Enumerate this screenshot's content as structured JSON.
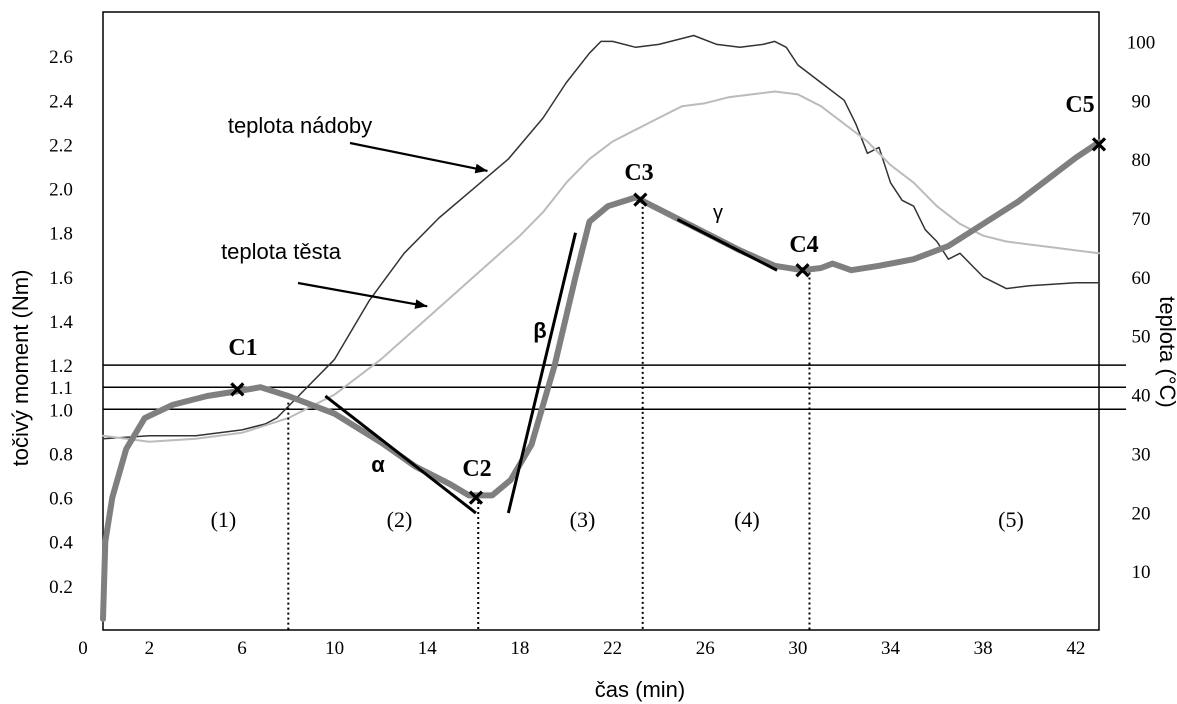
{
  "chart_data": {
    "type": "line",
    "xlabel": "čas (min)",
    "ylabel_left": "točivý moment (Nm)",
    "ylabel_right": "teplota (°C)",
    "xlim": [
      0,
      43
    ],
    "ylim_left": [
      0,
      2.8
    ],
    "ylim_right": [
      0,
      105
    ],
    "x_ticks": [
      "0",
      "2",
      "6",
      "10",
      "14",
      "18",
      "22",
      "26",
      "30",
      "34",
      "38",
      "42"
    ],
    "y_left_ticks": [
      "0.2",
      "0.4",
      "0.6",
      "0.8",
      "1.0",
      "1.1",
      "1.2",
      "1.4",
      "1.6",
      "1.8",
      "2.0",
      "2.2",
      "2.4",
      "2.6"
    ],
    "y_right_ticks": [
      "10",
      "20",
      "30",
      "40",
      "50",
      "60",
      "70",
      "80",
      "90",
      "100"
    ],
    "reference_lines_left": [
      1.0,
      1.1,
      1.2
    ],
    "series": [
      {
        "name": "teplota nádoby",
        "axis": "right",
        "color": "#333333",
        "points": [
          [
            0,
            32.5
          ],
          [
            2,
            33
          ],
          [
            4,
            33
          ],
          [
            6,
            34
          ],
          [
            7,
            35
          ],
          [
            7.5,
            36
          ],
          [
            8.5,
            40
          ],
          [
            10,
            46
          ],
          [
            11.5,
            56
          ],
          [
            13,
            64
          ],
          [
            14.5,
            70
          ],
          [
            16,
            75
          ],
          [
            17.5,
            80
          ],
          [
            19,
            87
          ],
          [
            20,
            93
          ],
          [
            21,
            98
          ],
          [
            21.5,
            100
          ],
          [
            22,
            100
          ],
          [
            23,
            99
          ],
          [
            24,
            99.5
          ],
          [
            25.5,
            101
          ],
          [
            26.5,
            99.5
          ],
          [
            27.5,
            99
          ],
          [
            28.5,
            99.5
          ],
          [
            29,
            100
          ],
          [
            29.5,
            99
          ],
          [
            30,
            96
          ],
          [
            31,
            93
          ],
          [
            32,
            90
          ],
          [
            32.5,
            86
          ],
          [
            33,
            81
          ],
          [
            33.5,
            82
          ],
          [
            34,
            76
          ],
          [
            34.5,
            73
          ],
          [
            35,
            72
          ],
          [
            35.5,
            68
          ],
          [
            36,
            66
          ],
          [
            36.5,
            63
          ],
          [
            37,
            64
          ],
          [
            37.5,
            62
          ],
          [
            38,
            60
          ],
          [
            39,
            58
          ],
          [
            40,
            58.5
          ],
          [
            42,
            59
          ],
          [
            43,
            59
          ]
        ]
      },
      {
        "name": "teplota těsta",
        "axis": "right",
        "color": "#bbbbbb",
        "points": [
          [
            0,
            33
          ],
          [
            2,
            32
          ],
          [
            4,
            32.5
          ],
          [
            6,
            33.5
          ],
          [
            8,
            36
          ],
          [
            10,
            40
          ],
          [
            12,
            46
          ],
          [
            14,
            53
          ],
          [
            16,
            60
          ],
          [
            18,
            67
          ],
          [
            19,
            71
          ],
          [
            20,
            76
          ],
          [
            21,
            80
          ],
          [
            22,
            83
          ],
          [
            23,
            85
          ],
          [
            24,
            87
          ],
          [
            25,
            89
          ],
          [
            26,
            89.5
          ],
          [
            27,
            90.5
          ],
          [
            28,
            91
          ],
          [
            29,
            91.5
          ],
          [
            30,
            91
          ],
          [
            31,
            89
          ],
          [
            32,
            86
          ],
          [
            33,
            83
          ],
          [
            34,
            79
          ],
          [
            35,
            76
          ],
          [
            36,
            72
          ],
          [
            37,
            69
          ],
          [
            38,
            67
          ],
          [
            39,
            66
          ],
          [
            40,
            65.5
          ],
          [
            41,
            65
          ],
          [
            42,
            64.5
          ],
          [
            43,
            64
          ]
        ]
      },
      {
        "name": "točivý moment",
        "axis": "left",
        "color": "#7f7f7f",
        "points": [
          [
            0,
            0.05
          ],
          [
            0.1,
            0.4
          ],
          [
            0.4,
            0.6
          ],
          [
            1,
            0.82
          ],
          [
            1.8,
            0.96
          ],
          [
            3,
            1.02
          ],
          [
            4.5,
            1.06
          ],
          [
            5.7,
            1.08
          ],
          [
            6.8,
            1.1
          ],
          [
            8,
            1.06
          ],
          [
            10,
            0.98
          ],
          [
            12,
            0.85
          ],
          [
            13.5,
            0.74
          ],
          [
            15,
            0.66
          ],
          [
            15.8,
            0.61
          ],
          [
            16.8,
            0.61
          ],
          [
            17.6,
            0.68
          ],
          [
            18.5,
            0.84
          ],
          [
            19.5,
            1.2
          ],
          [
            20.4,
            1.6
          ],
          [
            21,
            1.85
          ],
          [
            21.8,
            1.92
          ],
          [
            23,
            1.96
          ],
          [
            24.5,
            1.88
          ],
          [
            26,
            1.8
          ],
          [
            27.5,
            1.72
          ],
          [
            29,
            1.65
          ],
          [
            30.2,
            1.63
          ],
          [
            31,
            1.64
          ],
          [
            31.5,
            1.66
          ],
          [
            32.3,
            1.63
          ],
          [
            33.5,
            1.65
          ],
          [
            35,
            1.68
          ],
          [
            36.5,
            1.74
          ],
          [
            38,
            1.84
          ],
          [
            39.5,
            1.94
          ],
          [
            40.5,
            2.02
          ],
          [
            42,
            2.14
          ],
          [
            43,
            2.21
          ]
        ]
      }
    ],
    "tangent_lines": [
      {
        "label": "α",
        "from": [
          9.6,
          1.06
        ],
        "to": [
          16.1,
          0.53
        ]
      },
      {
        "label": "β",
        "from": [
          17.5,
          0.53
        ],
        "to": [
          20.4,
          1.8
        ]
      },
      {
        "label": "γ",
        "from": [
          24.8,
          1.86
        ],
        "to": [
          29.1,
          1.63
        ]
      }
    ],
    "vertical_markers": [
      8,
      16.2,
      23.3,
      30.5
    ],
    "points": [
      {
        "label": "C1",
        "x": 5.8,
        "y": 1.09
      },
      {
        "label": "C2",
        "x": 16.1,
        "y": 0.6
      },
      {
        "label": "C3",
        "x": 23.2,
        "y": 1.95
      },
      {
        "label": "C4",
        "x": 30.2,
        "y": 1.63
      },
      {
        "label": "C5",
        "x": 43,
        "y": 2.2
      }
    ],
    "phases": [
      {
        "label": "(1)",
        "x": 5.2
      },
      {
        "label": "(2)",
        "x": 12.8
      },
      {
        "label": "(3)",
        "x": 20.7
      },
      {
        "label": "(4)",
        "x": 27.8
      },
      {
        "label": "(5)",
        "x": 39.2
      }
    ],
    "annotations": [
      {
        "text": "teplota nádoby",
        "arrow_to": [
          16.6,
          78
        ]
      },
      {
        "text": "teplota těsta",
        "arrow_to": [
          14,
          55
        ]
      }
    ]
  }
}
